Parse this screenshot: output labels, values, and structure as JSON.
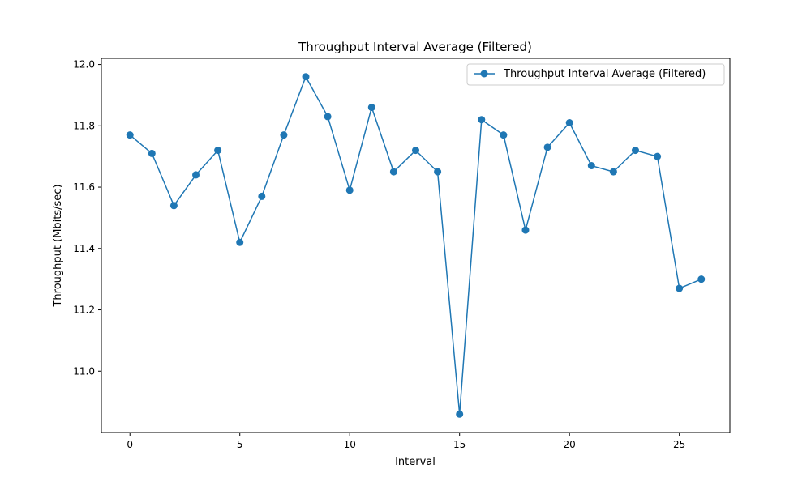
{
  "chart_data": {
    "type": "line",
    "title": "Throughput Interval Average (Filtered)",
    "xlabel": "Interval",
    "ylabel": "Throughput (Mbits/sec)",
    "xlim": [
      -1.3,
      27.3
    ],
    "ylim": [
      10.8,
      12.02
    ],
    "xticks": [
      0,
      5,
      10,
      15,
      20,
      25
    ],
    "xtick_labels": [
      "0",
      "5",
      "10",
      "15",
      "20",
      "25"
    ],
    "yticks": [
      11.0,
      11.2,
      11.4,
      11.6,
      11.8,
      12.0
    ],
    "ytick_labels": [
      "11.0",
      "11.2",
      "11.4",
      "11.6",
      "11.8",
      "12.0"
    ],
    "grid": false,
    "legend_position": "top-right",
    "series": [
      {
        "name": "Throughput Interval Average (Filtered)",
        "color": "#1f77b4",
        "marker": "circle",
        "x": [
          0,
          1,
          2,
          3,
          4,
          5,
          6,
          7,
          8,
          9,
          10,
          11,
          12,
          13,
          14,
          15,
          16,
          17,
          18,
          19,
          20,
          21,
          22,
          23,
          24,
          25,
          26
        ],
        "y": [
          11.77,
          11.71,
          11.54,
          11.64,
          11.72,
          11.42,
          11.57,
          11.77,
          11.96,
          11.83,
          11.59,
          11.86,
          11.65,
          11.72,
          11.65,
          10.86,
          11.82,
          11.77,
          11.46,
          11.73,
          11.81,
          11.67,
          11.65,
          11.72,
          11.7,
          11.27,
          11.3
        ]
      }
    ]
  }
}
